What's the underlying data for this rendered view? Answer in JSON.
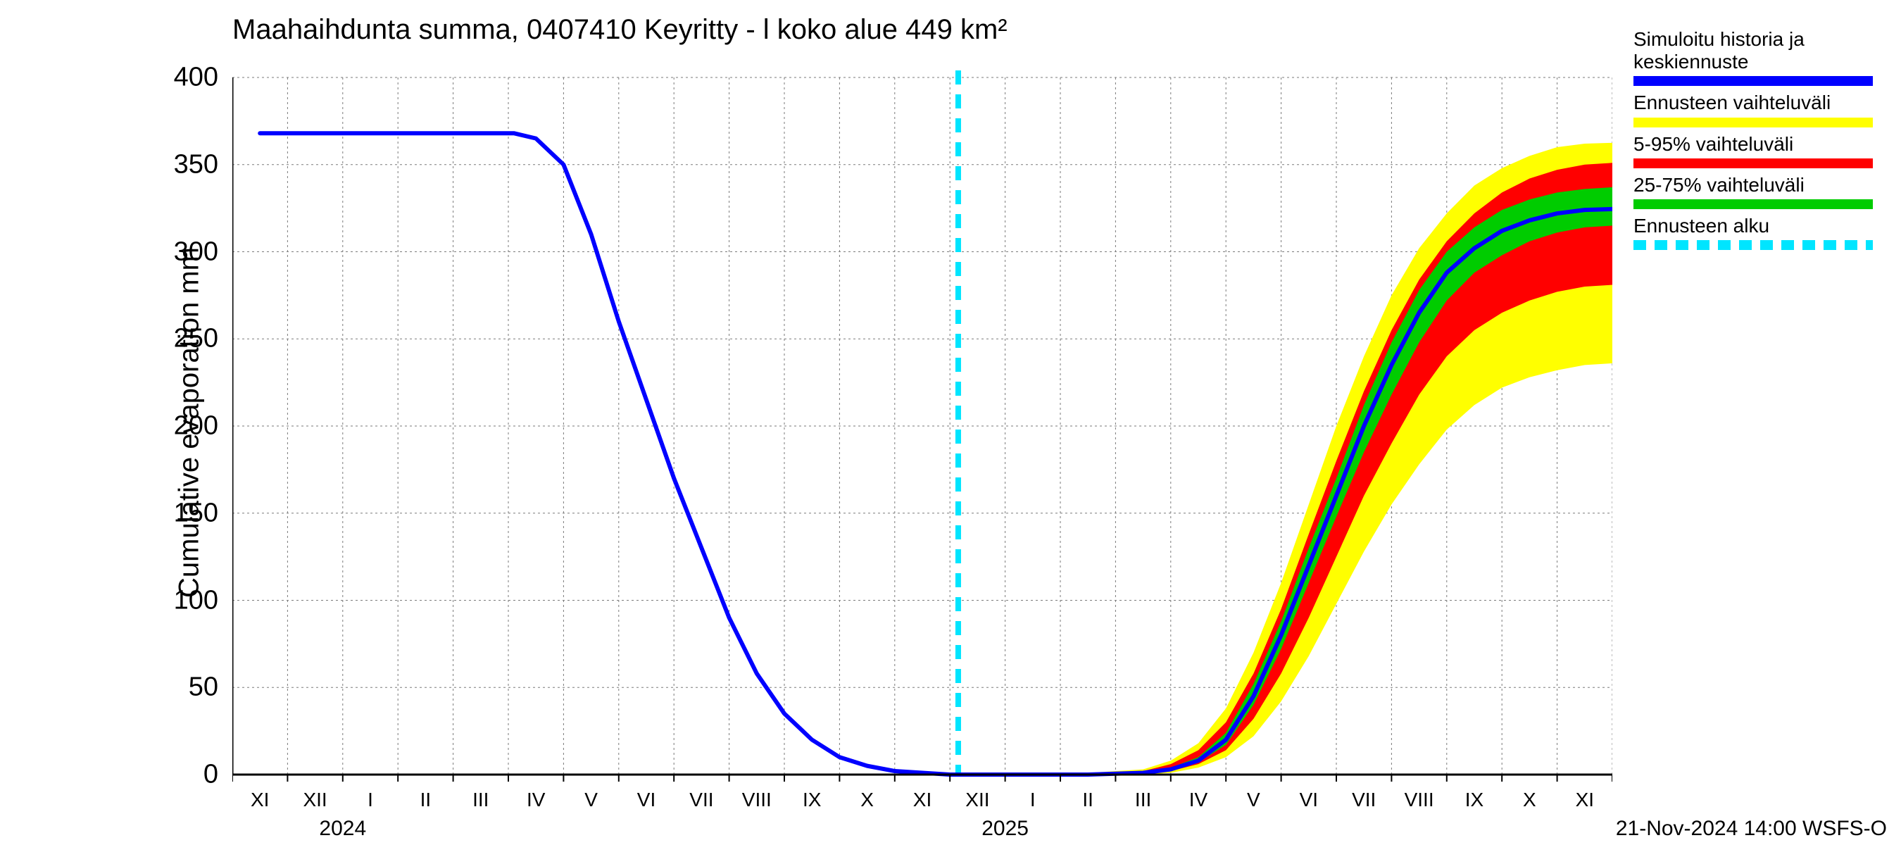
{
  "title": "Maahaihdunta summa, 0407410 Keyritty - l koko alue 449 km²",
  "ylabel": "Cumulative evaporation   mm",
  "footer": "21-Nov-2024 14:00 WSFS-O",
  "chart": {
    "type": "line-band-forecast",
    "background_color": "#ffffff",
    "grid_color": "#7a7a7a",
    "grid_dash": "3,4",
    "axis_color": "#000000",
    "ylim": [
      0,
      400
    ],
    "yticks": [
      0,
      50,
      100,
      150,
      200,
      250,
      300,
      350,
      400
    ],
    "x_domain_months": 25,
    "x_month_labels": [
      "XI",
      "XII",
      "I",
      "II",
      "III",
      "IV",
      "V",
      "VI",
      "VII",
      "VIII",
      "IX",
      "X",
      "XI",
      "XII",
      "I",
      "II",
      "III",
      "IV",
      "V",
      "VI",
      "VII",
      "VIII",
      "IX",
      "X",
      "XI"
    ],
    "year_markers": [
      {
        "label": "2024",
        "month_index": 2
      },
      {
        "label": "2025",
        "month_index": 14
      }
    ],
    "year_tick_indices": [
      2,
      14
    ],
    "forecast_start_month_index": 12.65,
    "series": {
      "center": {
        "color": "#0000ff",
        "width": 6,
        "points": [
          [
            0,
            368
          ],
          [
            1,
            368
          ],
          [
            2,
            368
          ],
          [
            3,
            368
          ],
          [
            4,
            368
          ],
          [
            4.6,
            368
          ],
          [
            5,
            365
          ],
          [
            5.5,
            350
          ],
          [
            6,
            310
          ],
          [
            6.5,
            260
          ],
          [
            7,
            215
          ],
          [
            7.5,
            170
          ],
          [
            8,
            130
          ],
          [
            8.5,
            90
          ],
          [
            9,
            58
          ],
          [
            9.5,
            35
          ],
          [
            10,
            20
          ],
          [
            10.5,
            10
          ],
          [
            11,
            5
          ],
          [
            11.5,
            2
          ],
          [
            12,
            1
          ],
          [
            12.5,
            0
          ],
          [
            13,
            0
          ],
          [
            14,
            0
          ],
          [
            15,
            0
          ],
          [
            16,
            1
          ],
          [
            16.5,
            3
          ],
          [
            17,
            8
          ],
          [
            17.5,
            20
          ],
          [
            18,
            45
          ],
          [
            18.5,
            80
          ],
          [
            19,
            120
          ],
          [
            19.5,
            160
          ],
          [
            20,
            200
          ],
          [
            20.5,
            235
          ],
          [
            21,
            265
          ],
          [
            21.5,
            288
          ],
          [
            22,
            302
          ],
          [
            22.5,
            312
          ],
          [
            23,
            318
          ],
          [
            23.5,
            322
          ],
          [
            24,
            324
          ],
          [
            25,
            325
          ]
        ]
      },
      "band_full": {
        "color": "#ffff00",
        "lo": [
          [
            12.65,
            0
          ],
          [
            13,
            0
          ],
          [
            14,
            0
          ],
          [
            15,
            0
          ],
          [
            16,
            0
          ],
          [
            16.5,
            1
          ],
          [
            17,
            4
          ],
          [
            17.5,
            10
          ],
          [
            18,
            22
          ],
          [
            18.5,
            42
          ],
          [
            19,
            68
          ],
          [
            19.5,
            98
          ],
          [
            20,
            128
          ],
          [
            20.5,
            155
          ],
          [
            21,
            178
          ],
          [
            21.5,
            198
          ],
          [
            22,
            212
          ],
          [
            22.5,
            222
          ],
          [
            23,
            228
          ],
          [
            23.5,
            232
          ],
          [
            24,
            235
          ],
          [
            25,
            237
          ]
        ],
        "hi": [
          [
            12.65,
            0
          ],
          [
            13,
            0
          ],
          [
            14,
            0
          ],
          [
            15,
            1
          ],
          [
            16,
            3
          ],
          [
            16.5,
            8
          ],
          [
            17,
            18
          ],
          [
            17.5,
            38
          ],
          [
            18,
            70
          ],
          [
            18.5,
            110
          ],
          [
            19,
            155
          ],
          [
            19.5,
            200
          ],
          [
            20,
            240
          ],
          [
            20.5,
            275
          ],
          [
            21,
            302
          ],
          [
            21.5,
            322
          ],
          [
            22,
            338
          ],
          [
            22.5,
            348
          ],
          [
            23,
            355
          ],
          [
            23.5,
            360
          ],
          [
            24,
            362
          ],
          [
            25,
            363
          ]
        ]
      },
      "band_5_95": {
        "color": "#ff0000",
        "lo": [
          [
            12.65,
            0
          ],
          [
            13,
            0
          ],
          [
            14,
            0
          ],
          [
            15,
            0
          ],
          [
            16,
            0
          ],
          [
            16.5,
            2
          ],
          [
            17,
            6
          ],
          [
            17.5,
            14
          ],
          [
            18,
            32
          ],
          [
            18.5,
            58
          ],
          [
            19,
            90
          ],
          [
            19.5,
            125
          ],
          [
            20,
            160
          ],
          [
            20.5,
            190
          ],
          [
            21,
            218
          ],
          [
            21.5,
            240
          ],
          [
            22,
            255
          ],
          [
            22.5,
            265
          ],
          [
            23,
            272
          ],
          [
            23.5,
            277
          ],
          [
            24,
            280
          ],
          [
            25,
            282
          ]
        ],
        "hi": [
          [
            12.65,
            0
          ],
          [
            13,
            0
          ],
          [
            14,
            0
          ],
          [
            15,
            0
          ],
          [
            16,
            2
          ],
          [
            16.5,
            6
          ],
          [
            17,
            14
          ],
          [
            17.5,
            30
          ],
          [
            18,
            58
          ],
          [
            18.5,
            95
          ],
          [
            19,
            138
          ],
          [
            19.5,
            180
          ],
          [
            20,
            220
          ],
          [
            20.5,
            255
          ],
          [
            21,
            284
          ],
          [
            21.5,
            306
          ],
          [
            22,
            322
          ],
          [
            22.5,
            334
          ],
          [
            23,
            342
          ],
          [
            23.5,
            347
          ],
          [
            24,
            350
          ],
          [
            25,
            352
          ]
        ]
      },
      "band_25_75": {
        "color": "#00cc00",
        "lo": [
          [
            12.65,
            0
          ],
          [
            13,
            0
          ],
          [
            14,
            0
          ],
          [
            15,
            0
          ],
          [
            16,
            1
          ],
          [
            16.5,
            3
          ],
          [
            17,
            7
          ],
          [
            17.5,
            17
          ],
          [
            18,
            40
          ],
          [
            18.5,
            72
          ],
          [
            19,
            110
          ],
          [
            19.5,
            148
          ],
          [
            20,
            185
          ],
          [
            20.5,
            218
          ],
          [
            21,
            248
          ],
          [
            21.5,
            272
          ],
          [
            22,
            288
          ],
          [
            22.5,
            298
          ],
          [
            23,
            306
          ],
          [
            23.5,
            311
          ],
          [
            24,
            314
          ],
          [
            25,
            316
          ]
        ],
        "hi": [
          [
            12.65,
            0
          ],
          [
            13,
            0
          ],
          [
            14,
            0
          ],
          [
            15,
            0
          ],
          [
            16,
            1
          ],
          [
            16.5,
            4
          ],
          [
            17,
            10
          ],
          [
            17.5,
            24
          ],
          [
            18,
            52
          ],
          [
            18.5,
            88
          ],
          [
            19,
            130
          ],
          [
            19.5,
            170
          ],
          [
            20,
            212
          ],
          [
            20.5,
            248
          ],
          [
            21,
            278
          ],
          [
            21.5,
            300
          ],
          [
            22,
            314
          ],
          [
            22.5,
            324
          ],
          [
            23,
            330
          ],
          [
            23.5,
            334
          ],
          [
            24,
            336
          ],
          [
            25,
            338
          ]
        ]
      },
      "forecast_line": {
        "color": "#00e5ff",
        "width": 8,
        "dash": "20,14"
      }
    }
  },
  "legend": [
    {
      "label_lines": [
        "Simuloitu historia ja",
        "keskiennuste"
      ],
      "swatch_color": "#0000ff",
      "style": "solid"
    },
    {
      "label_lines": [
        "Ennusteen vaihteluväli"
      ],
      "swatch_color": "#ffff00",
      "style": "solid"
    },
    {
      "label_lines": [
        "5-95% vaihteluväli"
      ],
      "swatch_color": "#ff0000",
      "style": "solid"
    },
    {
      "label_lines": [
        "25-75% vaihteluväli"
      ],
      "swatch_color": "#00cc00",
      "style": "solid"
    },
    {
      "label_lines": [
        "Ennusteen alku"
      ],
      "swatch_color": "#00e5ff",
      "style": "dashed"
    }
  ]
}
